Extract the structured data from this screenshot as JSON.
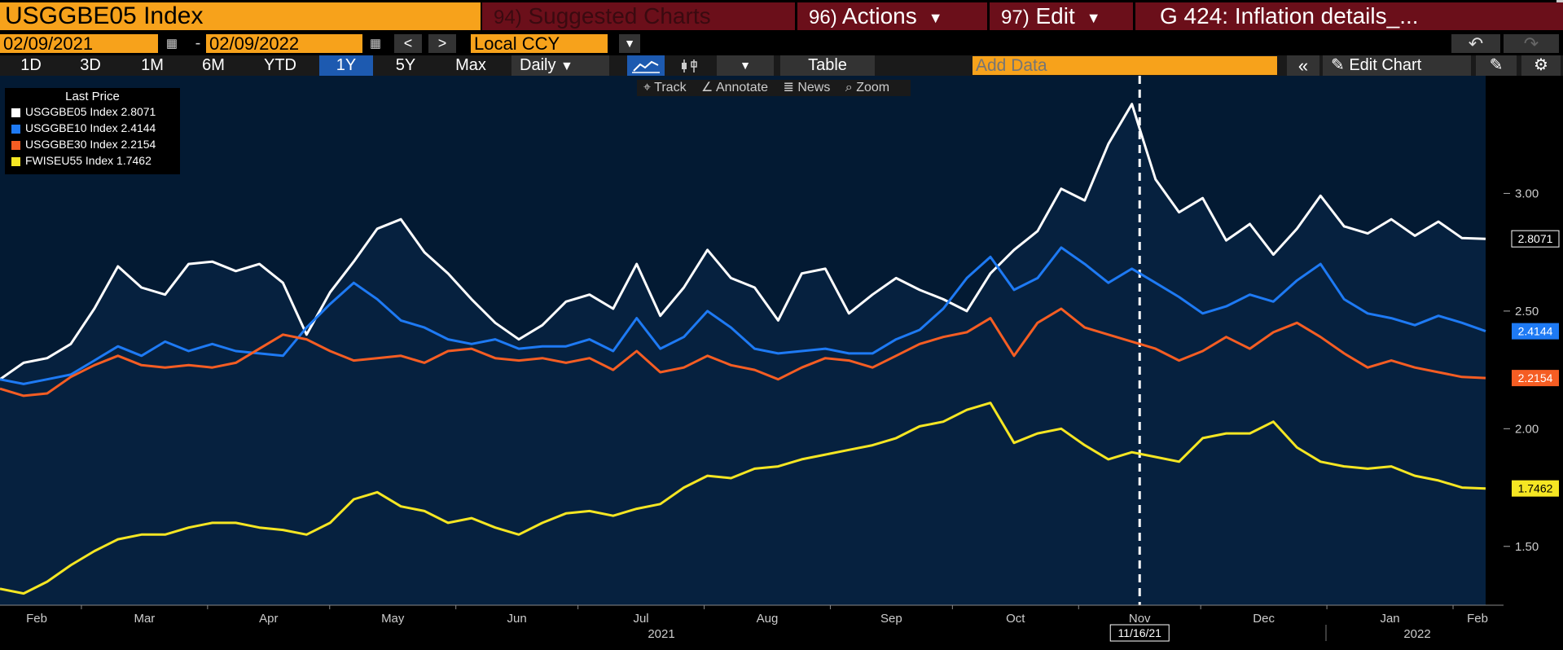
{
  "header": {
    "ticker": "USGGBE05 Index",
    "suggested": {
      "num": "94)",
      "label": "Suggested Charts"
    },
    "actions": {
      "num": "96)",
      "label": "Actions"
    },
    "edit": {
      "num": "97)",
      "label": "Edit"
    },
    "details": "G 424: Inflation details_..."
  },
  "controls": {
    "start_date": "02/09/2021",
    "end_date": "02/09/2022",
    "dash": "-",
    "prev": "<",
    "next": ">",
    "currency": "Local CCY",
    "periods": [
      "1D",
      "3D",
      "1M",
      "6M",
      "YTD",
      "1Y",
      "5Y",
      "Max"
    ],
    "selected_period": "1Y",
    "frequency": "Daily",
    "table_label": "Table",
    "add_data_placeholder": "Add Data",
    "edit_chart_label": "Edit Chart"
  },
  "toolbar": {
    "track": "Track",
    "annotate": "Annotate",
    "news": "News",
    "zoom": "Zoom"
  },
  "colors": {
    "accent": "#f7a21b",
    "edit_red": "#6b0f1a",
    "selected_blue": "#1d5ab0",
    "plot_bg": "#031a33"
  },
  "chart_data": {
    "type": "line",
    "legend_title": "Last Price",
    "legend_position": "top-left",
    "x_start": "2021-02-09",
    "x_end": "2022-02-09",
    "x_ticks": [
      "Feb",
      "Mar",
      "Apr",
      "May",
      "Jun",
      "Jul",
      "Aug",
      "Sep",
      "Oct",
      "Nov",
      "Dec",
      "Jan",
      "Feb"
    ],
    "year_labels": [
      "2021",
      "2022"
    ],
    "crosshair_label": "11/16/21",
    "y_ticks": [
      "1.50",
      "2.00",
      "2.50",
      "3.00"
    ],
    "ylim": [
      1.25,
      3.5
    ],
    "series": [
      {
        "name": "USGGBE05 Index",
        "last": "2.8071",
        "color": "#ffffff",
        "values": [
          2.21,
          2.28,
          2.3,
          2.36,
          2.51,
          2.69,
          2.6,
          2.57,
          2.7,
          2.71,
          2.67,
          2.7,
          2.62,
          2.4,
          2.58,
          2.71,
          2.85,
          2.89,
          2.75,
          2.66,
          2.55,
          2.45,
          2.38,
          2.44,
          2.54,
          2.57,
          2.51,
          2.7,
          2.48,
          2.6,
          2.76,
          2.64,
          2.6,
          2.46,
          2.66,
          2.68,
          2.49,
          2.57,
          2.64,
          2.59,
          2.55,
          2.5,
          2.66,
          2.76,
          2.84,
          3.02,
          2.97,
          3.21,
          3.38,
          3.06,
          2.92,
          2.98,
          2.8,
          2.87,
          2.74,
          2.85,
          2.99,
          2.86,
          2.83,
          2.89,
          2.82,
          2.88,
          2.81,
          2.8071
        ]
      },
      {
        "name": "USGGBE10 Index",
        "last": "2.4144",
        "color": "#1e7af4",
        "values": [
          2.21,
          2.19,
          2.21,
          2.23,
          2.29,
          2.35,
          2.31,
          2.37,
          2.33,
          2.36,
          2.33,
          2.32,
          2.31,
          2.43,
          2.53,
          2.62,
          2.55,
          2.46,
          2.43,
          2.38,
          2.36,
          2.38,
          2.34,
          2.35,
          2.35,
          2.38,
          2.33,
          2.47,
          2.34,
          2.39,
          2.5,
          2.43,
          2.34,
          2.32,
          2.33,
          2.34,
          2.32,
          2.32,
          2.38,
          2.42,
          2.51,
          2.64,
          2.73,
          2.59,
          2.64,
          2.77,
          2.7,
          2.62,
          2.68,
          2.62,
          2.56,
          2.49,
          2.52,
          2.57,
          2.54,
          2.63,
          2.7,
          2.55,
          2.49,
          2.47,
          2.44,
          2.48,
          2.45,
          2.4144
        ]
      },
      {
        "name": "USGGBE30 Index",
        "last": "2.2154",
        "color": "#f55d23",
        "values": [
          2.17,
          2.14,
          2.15,
          2.22,
          2.27,
          2.31,
          2.27,
          2.26,
          2.27,
          2.26,
          2.28,
          2.34,
          2.4,
          2.38,
          2.33,
          2.29,
          2.3,
          2.31,
          2.28,
          2.33,
          2.34,
          2.3,
          2.29,
          2.3,
          2.28,
          2.3,
          2.25,
          2.33,
          2.24,
          2.26,
          2.31,
          2.27,
          2.25,
          2.21,
          2.26,
          2.3,
          2.29,
          2.26,
          2.31,
          2.36,
          2.39,
          2.41,
          2.47,
          2.31,
          2.45,
          2.51,
          2.43,
          2.4,
          2.37,
          2.34,
          2.29,
          2.33,
          2.39,
          2.34,
          2.41,
          2.45,
          2.39,
          2.32,
          2.26,
          2.29,
          2.26,
          2.24,
          2.22,
          2.2154
        ]
      },
      {
        "name": "FWISEU55 Index",
        "last": "1.7462",
        "color": "#f5e623",
        "values": [
          1.32,
          1.3,
          1.35,
          1.42,
          1.48,
          1.53,
          1.55,
          1.55,
          1.58,
          1.6,
          1.6,
          1.58,
          1.57,
          1.55,
          1.6,
          1.7,
          1.73,
          1.67,
          1.65,
          1.6,
          1.62,
          1.58,
          1.55,
          1.6,
          1.64,
          1.65,
          1.63,
          1.66,
          1.68,
          1.75,
          1.8,
          1.79,
          1.83,
          1.84,
          1.87,
          1.89,
          1.91,
          1.93,
          1.96,
          2.01,
          2.03,
          2.08,
          2.11,
          1.94,
          1.98,
          2.0,
          1.93,
          1.87,
          1.9,
          1.88,
          1.86,
          1.96,
          1.98,
          1.98,
          2.03,
          1.92,
          1.86,
          1.84,
          1.83,
          1.84,
          1.8,
          1.78,
          1.75,
          1.7462
        ]
      }
    ]
  }
}
